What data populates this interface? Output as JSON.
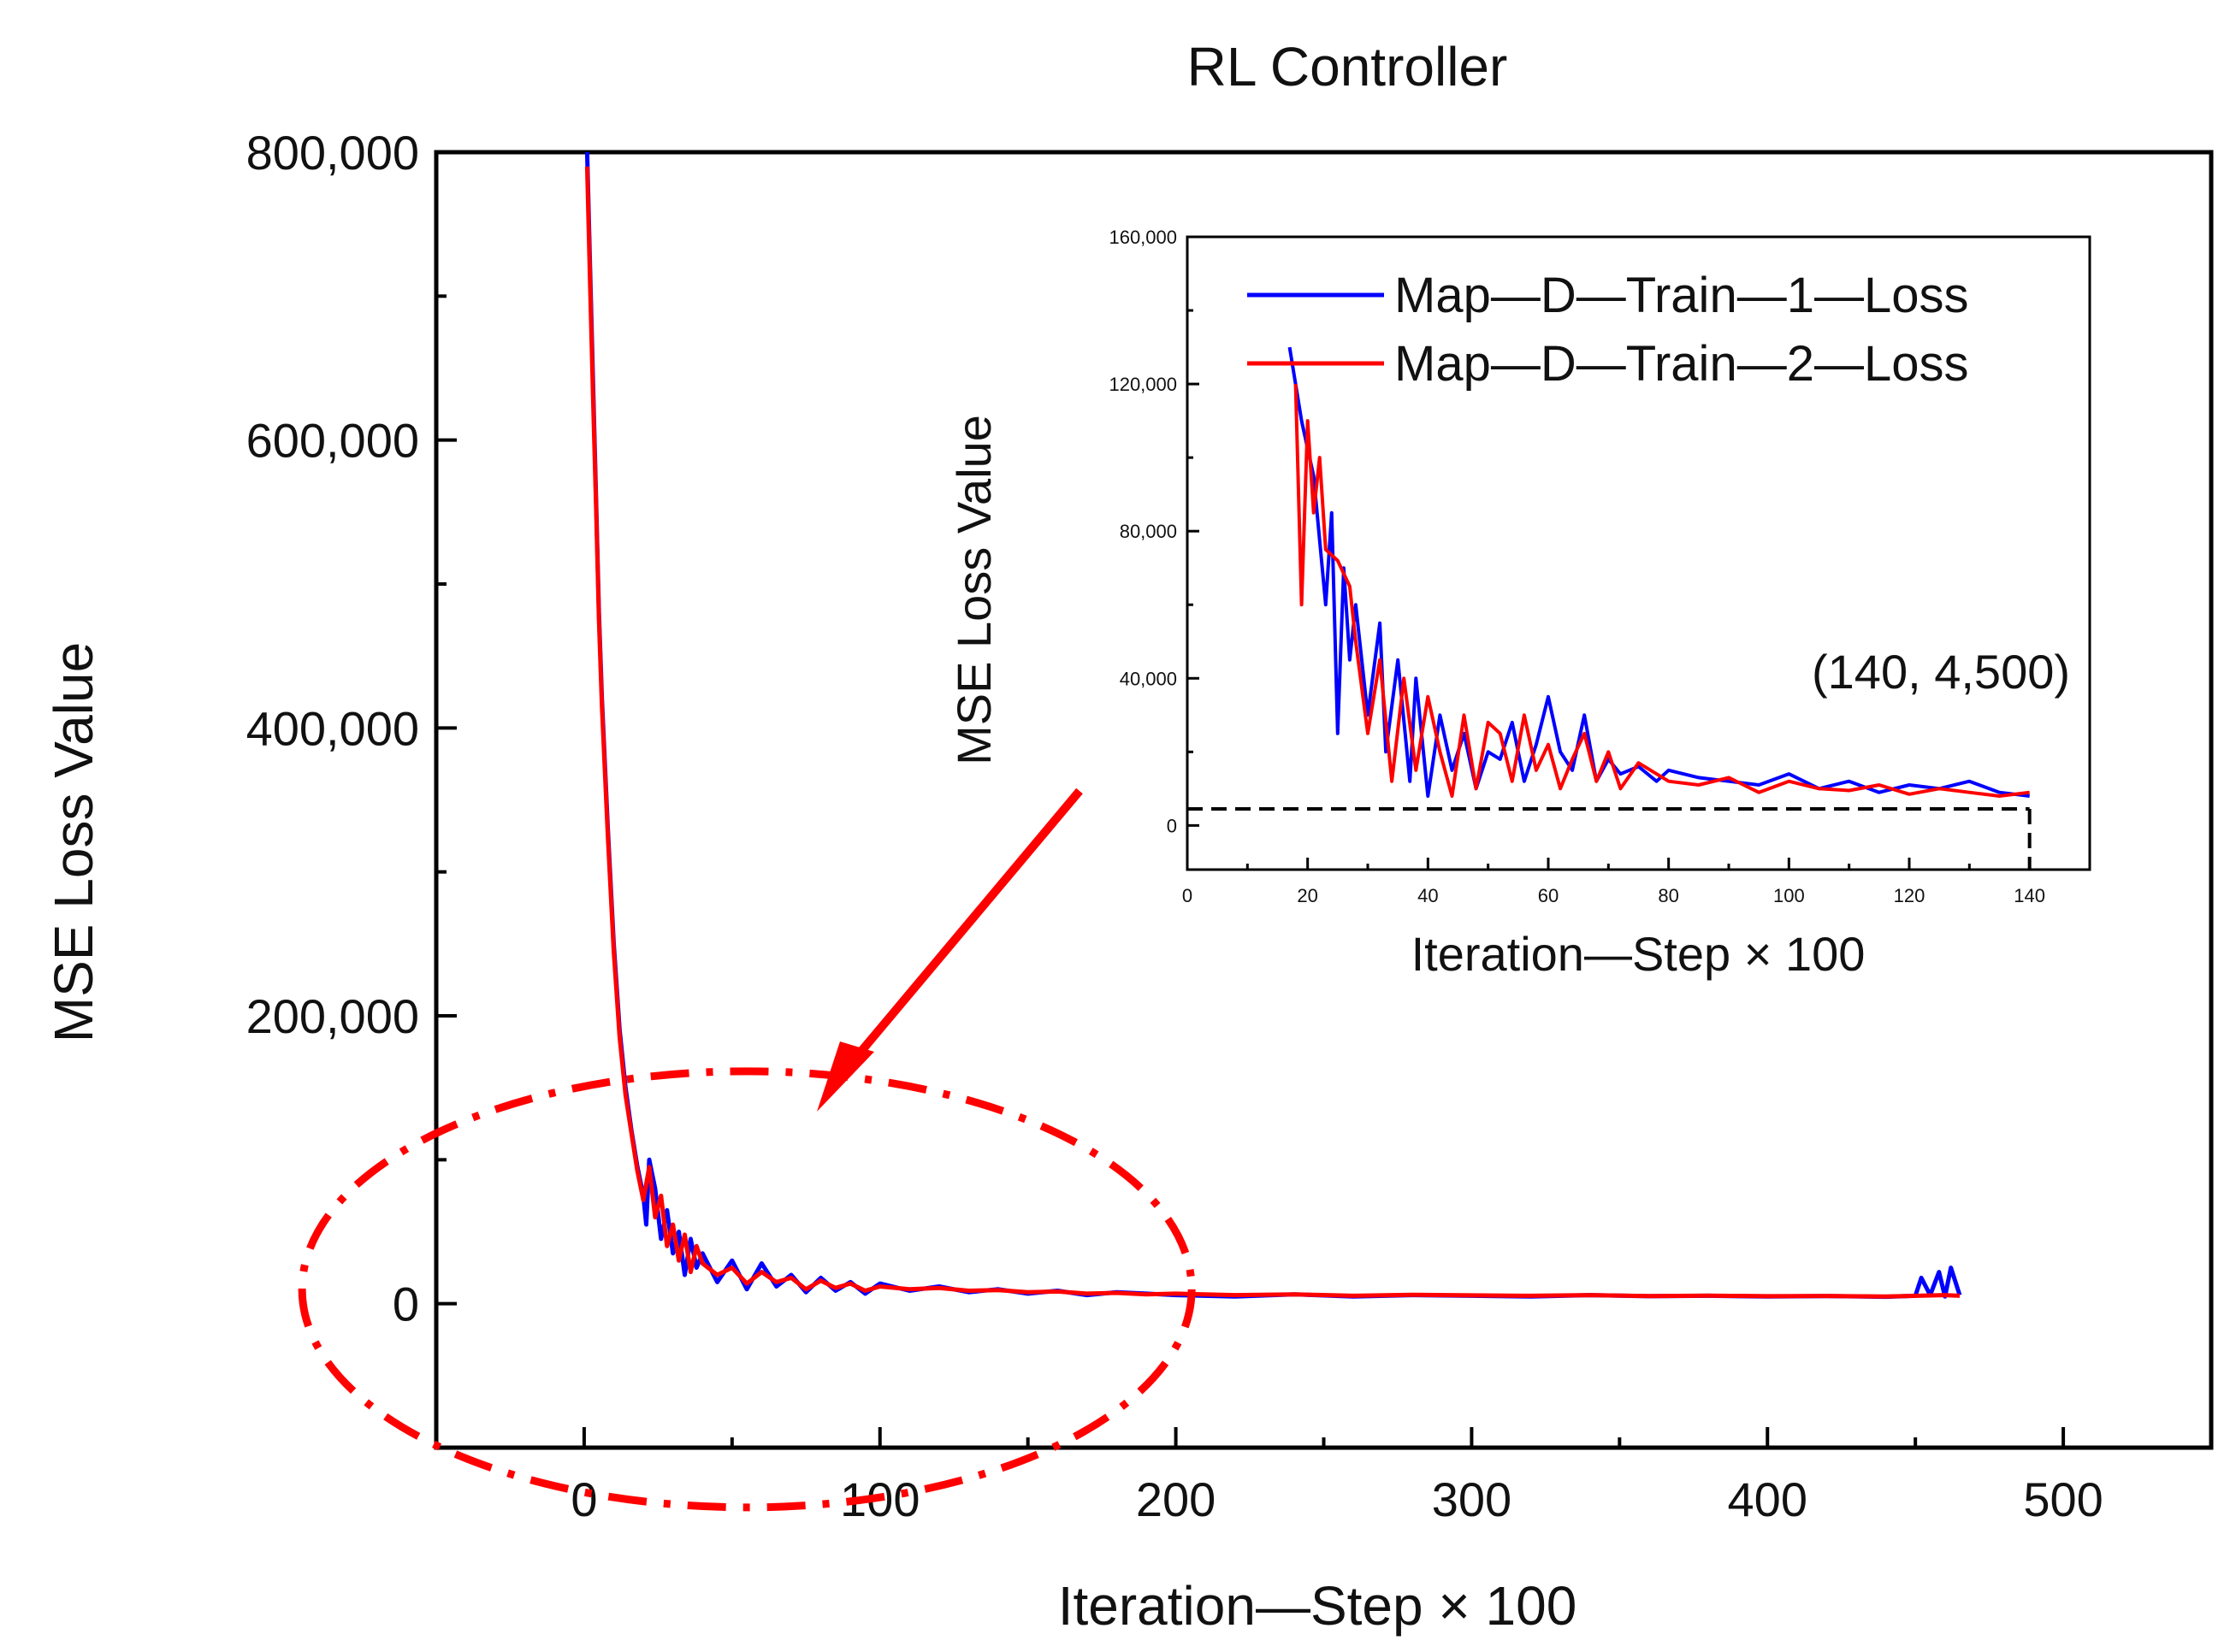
{
  "chart_data": [
    {
      "type": "line",
      "title": "RL Controller",
      "xlabel": "Iteration—Step × 100",
      "ylabel": "MSE Loss Value",
      "xlim": [
        -50,
        550
      ],
      "ylim": [
        -100000,
        800000
      ],
      "xticks": [
        0,
        100,
        200,
        300,
        400,
        500
      ],
      "xtick_labels": [
        "0",
        "100",
        "200",
        "300",
        "400",
        "500"
      ],
      "yticks": [
        0,
        200000,
        400000,
        600000,
        800000
      ],
      "ytick_labels": [
        "0",
        "200,000",
        "400,000",
        "600,000",
        "800,000"
      ],
      "series": [
        {
          "name": "Map—D—Train—1—Loss",
          "color": "#0000ff",
          "x": [
            1,
            2,
            3,
            4,
            5,
            6,
            8,
            10,
            12,
            14,
            16,
            18,
            20,
            21,
            22,
            24,
            26,
            28,
            30,
            32,
            34,
            36,
            38,
            40,
            45,
            50,
            55,
            60,
            65,
            70,
            75,
            80,
            85,
            90,
            95,
            100,
            110,
            120,
            130,
            140,
            150,
            160,
            170,
            180,
            190,
            200,
            220,
            240,
            260,
            280,
            300,
            320,
            340,
            360,
            380,
            400,
            420,
            440,
            450,
            452,
            455,
            458,
            460,
            462,
            465
          ],
          "y": [
            800000,
            720000,
            640000,
            560000,
            480000,
            420000,
            330000,
            250000,
            190000,
            150000,
            120000,
            95000,
            75000,
            55000,
            100000,
            80000,
            45000,
            65000,
            35000,
            50000,
            20000,
            45000,
            25000,
            35000,
            15000,
            30000,
            10000,
            28000,
            12000,
            20000,
            8000,
            18000,
            9000,
            15000,
            7000,
            14000,
            9000,
            12000,
            8000,
            10000,
            7000,
            9000,
            6000,
            8000,
            7000,
            6000,
            5000,
            6500,
            5000,
            6000,
            5500,
            5000,
            6000,
            5200,
            5500,
            5000,
            5300,
            4800,
            5500,
            18000,
            6000,
            22000,
            5000,
            25000,
            6000
          ]
        },
        {
          "name": "Map—D—Train—2—Loss",
          "color": "#ff0000",
          "x": [
            1,
            2,
            3,
            4,
            5,
            6,
            8,
            10,
            12,
            14,
            16,
            18,
            20,
            22,
            24,
            26,
            28,
            30,
            32,
            34,
            36,
            38,
            40,
            45,
            50,
            55,
            60,
            65,
            70,
            75,
            80,
            85,
            90,
            95,
            100,
            110,
            120,
            130,
            140,
            150,
            160,
            170,
            180,
            190,
            200,
            220,
            240,
            260,
            280,
            300,
            320,
            340,
            360,
            380,
            400,
            420,
            440,
            460,
            465
          ],
          "y": [
            790000,
            710000,
            630000,
            555000,
            475000,
            415000,
            325000,
            245000,
            185000,
            145000,
            118000,
            92000,
            72000,
            95000,
            60000,
            75000,
            40000,
            55000,
            30000,
            48000,
            22000,
            40000,
            28000,
            20000,
            25000,
            14000,
            22000,
            15000,
            18000,
            10000,
            16000,
            11000,
            14000,
            9000,
            12000,
            10000,
            11000,
            9000,
            9500,
            8000,
            8500,
            7000,
            7500,
            6500,
            7000,
            6000,
            6500,
            5500,
            6200,
            5800,
            5500,
            6000,
            5300,
            5600,
            5200,
            5400,
            5000,
            6000,
            5500
          ]
        }
      ],
      "annotations": [
        {
          "type": "ellipse",
          "label": "",
          "center_x": 55,
          "center_y": 10000,
          "color": "#ff0000"
        },
        {
          "type": "arrow",
          "label": "",
          "color": "#ff0000"
        }
      ]
    },
    {
      "type": "line",
      "title": "",
      "xlabel": "Iteration—Step × 100",
      "ylabel": "MSE Loss Value",
      "xlim": [
        0,
        150
      ],
      "ylim": [
        -12000,
        160000
      ],
      "xticks": [
        0,
        20,
        40,
        60,
        80,
        100,
        120,
        140
      ],
      "xtick_labels": [
        "0",
        "20",
        "40",
        "60",
        "80",
        "100",
        "120",
        "140"
      ],
      "yticks": [
        0,
        40000,
        80000,
        120000,
        160000
      ],
      "ytick_labels": [
        "0",
        "40,000",
        "80,000",
        "120,000",
        "160,000"
      ],
      "legend": "top-right",
      "series": [
        {
          "name": "Map—D—Train—1—Loss",
          "color": "#0000ff",
          "x": [
            17,
            19,
            21,
            23,
            24,
            25,
            26,
            27,
            28,
            30,
            32,
            33,
            35,
            37,
            38,
            40,
            42,
            44,
            46,
            48,
            50,
            52,
            54,
            56,
            58,
            60,
            62,
            64,
            66,
            68,
            70,
            72,
            75,
            78,
            80,
            85,
            90,
            95,
            100,
            105,
            110,
            115,
            120,
            125,
            130,
            135,
            140
          ],
          "y": [
            130000,
            110000,
            95000,
            60000,
            85000,
            25000,
            70000,
            45000,
            60000,
            30000,
            55000,
            20000,
            45000,
            12000,
            40000,
            8000,
            30000,
            15000,
            25000,
            10000,
            20000,
            18000,
            28000,
            12000,
            22000,
            35000,
            20000,
            15000,
            30000,
            12000,
            18000,
            14000,
            16000,
            12000,
            15000,
            13000,
            12000,
            11000,
            14000,
            10000,
            12000,
            9000,
            11000,
            10000,
            12000,
            9000,
            8000
          ]
        },
        {
          "name": "Map—D—Train—2—Loss",
          "color": "#ff0000",
          "x": [
            18,
            19,
            20,
            21,
            22,
            23,
            25,
            27,
            28,
            30,
            32,
            34,
            36,
            38,
            40,
            42,
            44,
            46,
            48,
            50,
            52,
            54,
            56,
            58,
            60,
            62,
            64,
            66,
            68,
            70,
            72,
            75,
            78,
            80,
            85,
            90,
            95,
            100,
            105,
            110,
            115,
            120,
            125,
            130,
            135,
            140
          ],
          "y": [
            120000,
            60000,
            110000,
            85000,
            100000,
            75000,
            72000,
            65000,
            50000,
            25000,
            45000,
            12000,
            40000,
            15000,
            35000,
            20000,
            8000,
            30000,
            10000,
            28000,
            25000,
            12000,
            30000,
            15000,
            22000,
            10000,
            18000,
            25000,
            12000,
            20000,
            10000,
            17000,
            14000,
            12000,
            11000,
            13000,
            9000,
            12000,
            10000,
            9500,
            11000,
            8500,
            10000,
            9000,
            8000,
            9000
          ]
        }
      ],
      "annotations": [
        {
          "type": "text",
          "label": "(140, 4,500)",
          "x": 140,
          "y": 4500
        },
        {
          "type": "reference-line",
          "label": "",
          "y": 4500
        }
      ]
    }
  ]
}
